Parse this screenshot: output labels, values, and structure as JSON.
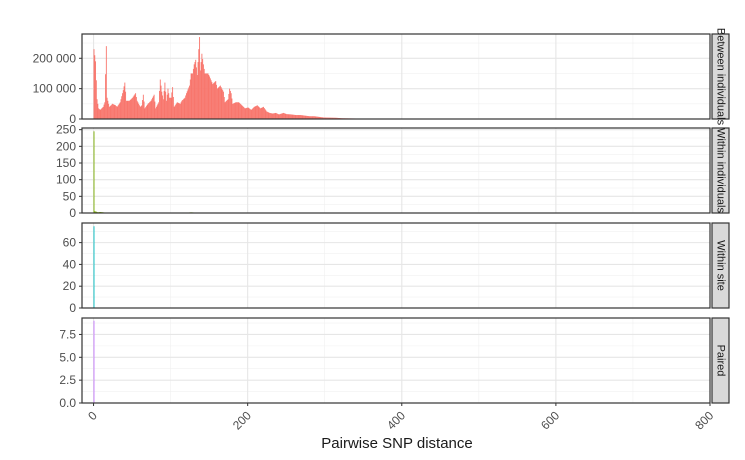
{
  "chart_data": {
    "type": "histogram-facets",
    "xlabel": "Pairwise SNP distance",
    "x_ticks": [
      "0",
      "200",
      "400",
      "600",
      "800"
    ],
    "x_tick_values": [
      0,
      200,
      400,
      600,
      800
    ],
    "xlim": [
      -15,
      800
    ],
    "grid": true,
    "legend": "none",
    "facets": [
      {
        "label": "Between individuals",
        "color": "#F8766D",
        "ylim": [
          0,
          280000
        ],
        "y_ticks": [
          "0",
          "100 000",
          "200 000"
        ],
        "y_tick_values": [
          0,
          100000,
          200000
        ],
        "profile": [
          [
            0,
            230000
          ],
          [
            2,
            190000
          ],
          [
            4,
            65000
          ],
          [
            6,
            35000
          ],
          [
            8,
            30000
          ],
          [
            12,
            40000
          ],
          [
            14,
            55000
          ],
          [
            16,
            240000
          ],
          [
            17,
            70000
          ],
          [
            20,
            40000
          ],
          [
            24,
            50000
          ],
          [
            28,
            45000
          ],
          [
            30,
            40000
          ],
          [
            34,
            55000
          ],
          [
            38,
            95000
          ],
          [
            40,
            120000
          ],
          [
            42,
            60000
          ],
          [
            46,
            60000
          ],
          [
            50,
            70000
          ],
          [
            54,
            85000
          ],
          [
            56,
            60000
          ],
          [
            60,
            40000
          ],
          [
            62,
            45000
          ],
          [
            64,
            80000
          ],
          [
            66,
            35000
          ],
          [
            70,
            50000
          ],
          [
            74,
            60000
          ],
          [
            78,
            80000
          ],
          [
            80,
            35000
          ],
          [
            84,
            55000
          ],
          [
            86,
            130000
          ],
          [
            88,
            90000
          ],
          [
            90,
            65000
          ],
          [
            92,
            120000
          ],
          [
            94,
            60000
          ],
          [
            96,
            100000
          ],
          [
            98,
            70000
          ],
          [
            100,
            70000
          ],
          [
            102,
            105000
          ],
          [
            104,
            40000
          ],
          [
            108,
            55000
          ],
          [
            112,
            50000
          ],
          [
            114,
            60000
          ],
          [
            118,
            70000
          ],
          [
            120,
            85000
          ],
          [
            124,
            110000
          ],
          [
            126,
            150000
          ],
          [
            128,
            150000
          ],
          [
            130,
            180000
          ],
          [
            132,
            195000
          ],
          [
            134,
            145000
          ],
          [
            136,
            230000
          ],
          [
            137,
            270000
          ],
          [
            138,
            160000
          ],
          [
            140,
            215000
          ],
          [
            142,
            180000
          ],
          [
            144,
            150000
          ],
          [
            148,
            150000
          ],
          [
            150,
            140000
          ],
          [
            154,
            115000
          ],
          [
            158,
            125000
          ],
          [
            160,
            100000
          ],
          [
            164,
            110000
          ],
          [
            168,
            90000
          ],
          [
            170,
            55000
          ],
          [
            174,
            65000
          ],
          [
            176,
            100000
          ],
          [
            178,
            85000
          ],
          [
            180,
            50000
          ],
          [
            184,
            55000
          ],
          [
            188,
            55000
          ],
          [
            192,
            45000
          ],
          [
            196,
            35000
          ],
          [
            200,
            38000
          ],
          [
            204,
            30000
          ],
          [
            208,
            40000
          ],
          [
            212,
            45000
          ],
          [
            216,
            35000
          ],
          [
            220,
            40000
          ],
          [
            224,
            25000
          ],
          [
            228,
            20000
          ],
          [
            232,
            18000
          ],
          [
            236,
            20000
          ],
          [
            240,
            15000
          ],
          [
            246,
            20000
          ],
          [
            250,
            16000
          ],
          [
            256,
            15000
          ],
          [
            262,
            13000
          ],
          [
            268,
            13000
          ],
          [
            274,
            11000
          ],
          [
            280,
            9000
          ],
          [
            286,
            9000
          ],
          [
            292,
            7000
          ],
          [
            298,
            5000
          ],
          [
            306,
            4500
          ],
          [
            314,
            4000
          ],
          [
            322,
            2500
          ],
          [
            332,
            2000
          ],
          [
            344,
            1500
          ],
          [
            356,
            1000
          ],
          [
            370,
            700
          ],
          [
            384,
            400
          ],
          [
            400,
            200
          ],
          [
            420,
            100
          ],
          [
            440,
            50
          ]
        ]
      },
      {
        "label": "Within individuals",
        "color": "#7CAE00",
        "ylim": [
          0,
          255
        ],
        "y_ticks": [
          "0",
          "50",
          "100",
          "150",
          "200",
          "250"
        ],
        "y_tick_values": [
          0,
          50,
          100,
          150,
          200,
          250
        ],
        "profile": [
          [
            0,
            245
          ],
          [
            1,
            5
          ],
          [
            3,
            4
          ],
          [
            5,
            2
          ],
          [
            8,
            3
          ],
          [
            12,
            2
          ],
          [
            15,
            1
          ],
          [
            20,
            1
          ],
          [
            26,
            1
          ],
          [
            32,
            1
          ],
          [
            38,
            1
          ],
          [
            46,
            1
          ],
          [
            52,
            1
          ],
          [
            60,
            1
          ],
          [
            68,
            1
          ],
          [
            78,
            1
          ],
          [
            86,
            1
          ],
          [
            92,
            1
          ],
          [
            96,
            1
          ],
          [
            104,
            1
          ],
          [
            112,
            1
          ],
          [
            120,
            1
          ],
          [
            126,
            2
          ],
          [
            134,
            1
          ],
          [
            142,
            1
          ],
          [
            150,
            1
          ],
          [
            158,
            1
          ],
          [
            166,
            1
          ],
          [
            176,
            1
          ],
          [
            186,
            1
          ],
          [
            194,
            1
          ],
          [
            200,
            1
          ],
          [
            206,
            1
          ],
          [
            212,
            1
          ],
          [
            218,
            1
          ]
        ]
      },
      {
        "label": "Within site",
        "color": "#00BFC4",
        "ylim": [
          0,
          78
        ],
        "y_ticks": [
          "0",
          "20",
          "40",
          "60"
        ],
        "y_tick_values": [
          0,
          20,
          40,
          60
        ],
        "profile": [
          [
            0,
            75
          ]
        ]
      },
      {
        "label": "Paired",
        "color": "#C77CFF",
        "ylim": [
          0,
          9.3
        ],
        "y_ticks": [
          "0.0",
          "2.5",
          "5.0",
          "7.5"
        ],
        "y_tick_values": [
          0,
          2.5,
          5,
          7.5
        ],
        "profile": [
          [
            0,
            9
          ]
        ]
      }
    ]
  }
}
